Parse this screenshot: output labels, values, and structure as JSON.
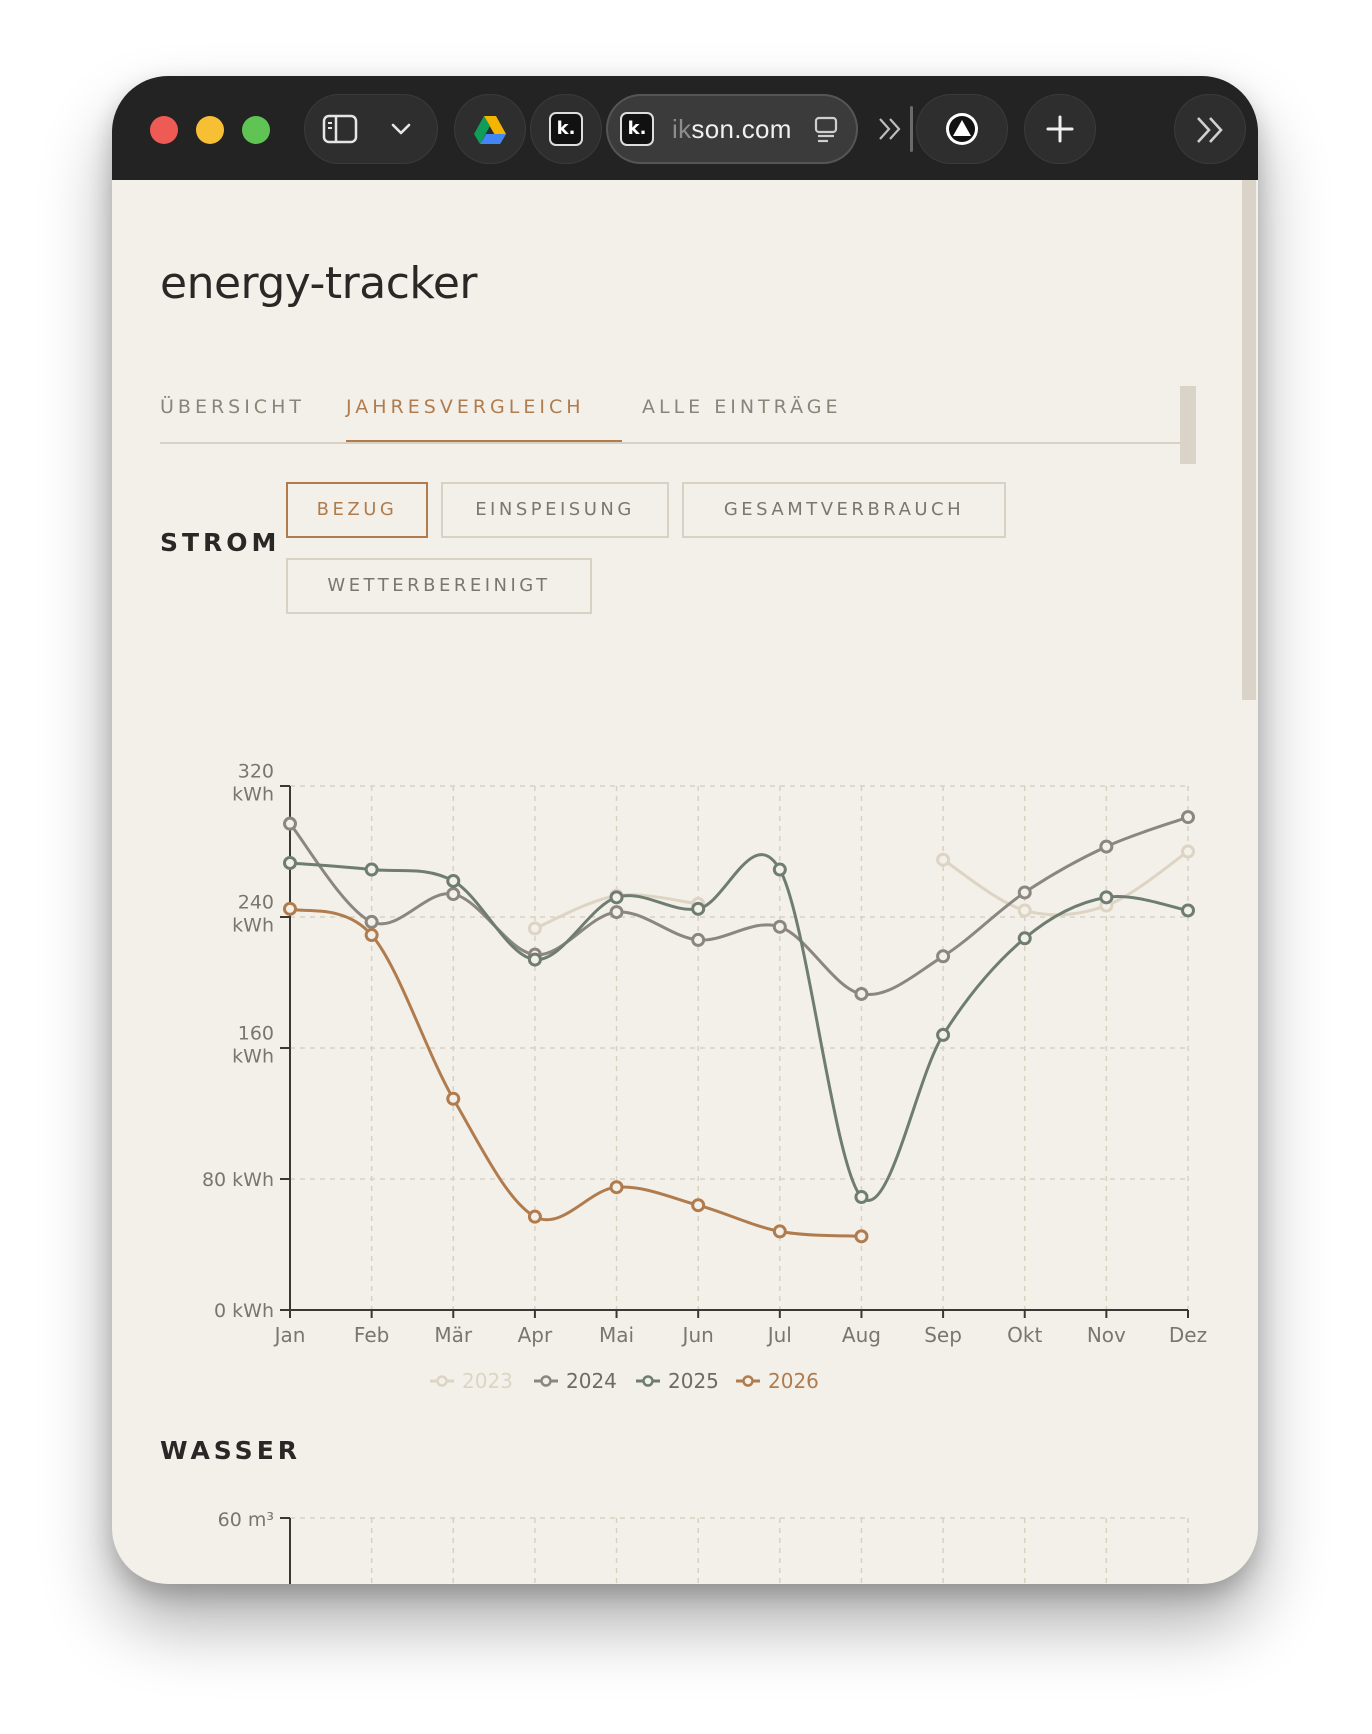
{
  "browser": {
    "url_dim": "ik",
    "url_main": "son.com",
    "k_label": "k."
  },
  "app": {
    "title": "energy-tracker",
    "tabs": [
      {
        "label": "ÜBERSICHT",
        "active": false
      },
      {
        "label": "JAHRESVERGLEICH",
        "active": true
      },
      {
        "label": "ALLE EINTRÄGE",
        "active": false
      }
    ]
  },
  "strom": {
    "label": "STROM",
    "filters": [
      {
        "label": "BEZUG",
        "active": true
      },
      {
        "label": "EINSPEISUNG",
        "active": false
      },
      {
        "label": "GESAMTVERBRAUCH",
        "active": false
      },
      {
        "label": "WETTERBEREINIGT",
        "active": false
      }
    ]
  },
  "wasser": {
    "label": "WASSER",
    "ytick_top": "60 m³"
  },
  "colors": {
    "2023": "#ddd4c4",
    "2024": "#8b8680",
    "2025": "#6e7d70",
    "2026": "#b07c4e",
    "axis": "#3a3835",
    "grid": "#d8d1c2"
  },
  "chart_data": {
    "type": "line",
    "title": "",
    "ylabel": "",
    "xlabel": "",
    "categories": [
      "Jan",
      "Feb",
      "Mär",
      "Apr",
      "Mai",
      "Jun",
      "Jul",
      "Aug",
      "Sep",
      "Okt",
      "Nov",
      "Dez"
    ],
    "yticks": [
      {
        "value": 320,
        "lines": [
          "320",
          "kWh"
        ]
      },
      {
        "value": 240,
        "lines": [
          "240",
          "kWh"
        ]
      },
      {
        "value": 160,
        "lines": [
          "160",
          "kWh"
        ]
      },
      {
        "value": 80,
        "lines": [
          "80 kWh"
        ]
      },
      {
        "value": 0,
        "lines": [
          "0 kWh"
        ]
      }
    ],
    "ylim": [
      0,
      320
    ],
    "grid": true,
    "legend_position": "bottom",
    "series": [
      {
        "name": "2023",
        "dim": true,
        "values": [
          null,
          null,
          null,
          233,
          253,
          248,
          null,
          null,
          275,
          244,
          247,
          280
        ]
      },
      {
        "name": "2024",
        "dim": false,
        "values": [
          297,
          237,
          254,
          217,
          243,
          226,
          234,
          193,
          216,
          255,
          283,
          301
        ]
      },
      {
        "name": "2025",
        "dim": false,
        "values": [
          273,
          269,
          262,
          214,
          252,
          245,
          269,
          69,
          168,
          227,
          252,
          244
        ]
      },
      {
        "name": "2026",
        "dim": false,
        "values": [
          245,
          229,
          129,
          57,
          75,
          64,
          48,
          45,
          null,
          null,
          null,
          null
        ]
      }
    ]
  }
}
